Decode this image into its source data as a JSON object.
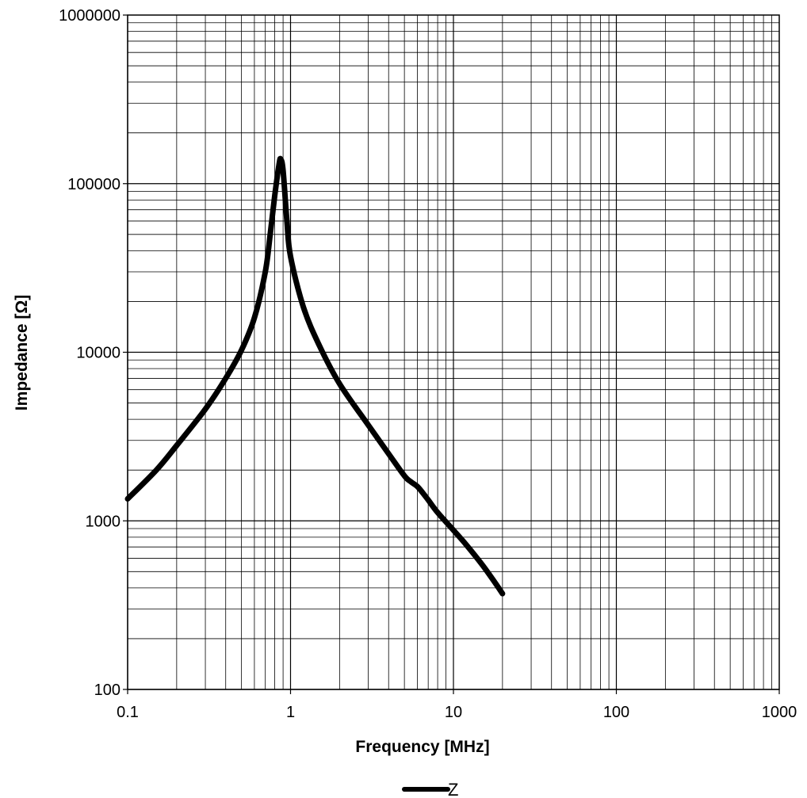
{
  "chart_data": {
    "type": "line",
    "title": "",
    "xlabel": "Frequency [MHz]",
    "ylabel": "Impedance [Ω]",
    "x_scale": "log",
    "y_scale": "log",
    "xlim": [
      0.1,
      1000
    ],
    "ylim": [
      100,
      1000000
    ],
    "x_ticks": [
      "0.1",
      "1",
      "10",
      "100",
      "1000"
    ],
    "y_ticks": [
      "100",
      "1000",
      "10000",
      "100000",
      "1000000"
    ],
    "grid": true,
    "legend_position": "bottom",
    "series": [
      {
        "name": "Z",
        "color": "#000000",
        "x": [
          0.1,
          0.15,
          0.2,
          0.3,
          0.4,
          0.5,
          0.6,
          0.7,
          0.75,
          0.8,
          0.85,
          0.87,
          0.9,
          0.95,
          1.0,
          1.2,
          1.5,
          2.0,
          3.0,
          4.0,
          5.0,
          5.5,
          6.0,
          6.5,
          7.0,
          8.0,
          10.0,
          12.0,
          15.0,
          18.0,
          20.0
        ],
        "y": [
          1350,
          2000,
          2800,
          4600,
          7000,
          10300,
          16000,
          30000,
          50000,
          85000,
          130000,
          140000,
          120000,
          60000,
          37000,
          18500,
          11000,
          6500,
          3700,
          2500,
          1850,
          1700,
          1600,
          1460,
          1330,
          1120,
          880,
          720,
          550,
          430,
          370
        ]
      }
    ]
  }
}
